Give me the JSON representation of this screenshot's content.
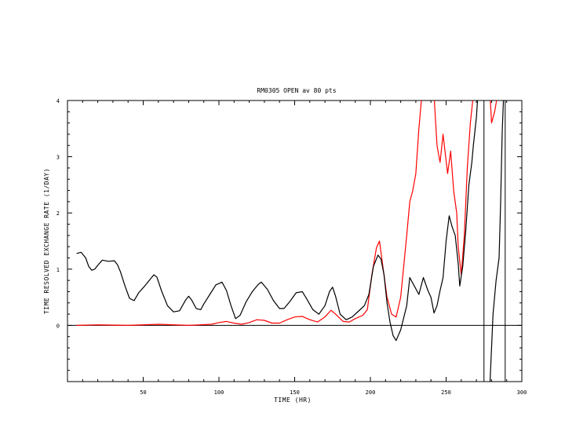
{
  "chart_data": {
    "type": "line",
    "title": "RM0305 OPEN av 80 pts",
    "xlabel": "TIME (HR)",
    "ylabel": "TIME RESOLVED EXCHANGE RATE (1/DAY)",
    "xlim": [
      0,
      300
    ],
    "ylim": [
      -1,
      4
    ],
    "x_ticks": [
      50,
      100,
      150,
      200,
      250,
      300
    ],
    "y_ticks": [
      0,
      1,
      2,
      3,
      4
    ],
    "zero_line": true,
    "vertical_lines_x": [
      275,
      289
    ],
    "series": [
      {
        "color": "#000000",
        "points": [
          [
            6,
            1.28
          ],
          [
            9,
            1.3
          ],
          [
            12,
            1.2
          ],
          [
            14,
            1.05
          ],
          [
            16,
            0.98
          ],
          [
            18,
            1.0
          ],
          [
            21,
            1.1
          ],
          [
            23,
            1.16
          ],
          [
            27,
            1.14
          ],
          [
            31,
            1.15
          ],
          [
            33,
            1.08
          ],
          [
            35,
            0.95
          ],
          [
            38,
            0.7
          ],
          [
            41,
            0.48
          ],
          [
            44,
            0.44
          ],
          [
            47,
            0.58
          ],
          [
            51,
            0.7
          ],
          [
            54,
            0.8
          ],
          [
            57,
            0.9
          ],
          [
            59,
            0.86
          ],
          [
            62,
            0.62
          ],
          [
            66,
            0.35
          ],
          [
            70,
            0.24
          ],
          [
            74,
            0.26
          ],
          [
            78,
            0.45
          ],
          [
            80,
            0.52
          ],
          [
            82,
            0.45
          ],
          [
            85,
            0.3
          ],
          [
            88,
            0.28
          ],
          [
            90,
            0.38
          ],
          [
            94,
            0.55
          ],
          [
            98,
            0.72
          ],
          [
            102,
            0.77
          ],
          [
            105,
            0.62
          ],
          [
            108,
            0.35
          ],
          [
            111,
            0.12
          ],
          [
            114,
            0.18
          ],
          [
            118,
            0.42
          ],
          [
            122,
            0.6
          ],
          [
            126,
            0.73
          ],
          [
            128,
            0.77
          ],
          [
            132,
            0.64
          ],
          [
            136,
            0.44
          ],
          [
            140,
            0.3
          ],
          [
            143,
            0.3
          ],
          [
            147,
            0.43
          ],
          [
            151,
            0.58
          ],
          [
            155,
            0.6
          ],
          [
            158,
            0.47
          ],
          [
            162,
            0.28
          ],
          [
            166,
            0.2
          ],
          [
            170,
            0.35
          ],
          [
            173,
            0.6
          ],
          [
            175,
            0.68
          ],
          [
            177,
            0.52
          ],
          [
            180,
            0.2
          ],
          [
            184,
            0.1
          ],
          [
            188,
            0.15
          ],
          [
            192,
            0.25
          ],
          [
            196,
            0.35
          ],
          [
            199,
            0.55
          ],
          [
            202,
            1.05
          ],
          [
            205,
            1.25
          ],
          [
            207,
            1.18
          ],
          [
            209,
            0.9
          ],
          [
            211,
            0.4
          ],
          [
            213,
            0.05
          ],
          [
            215,
            -0.18
          ],
          [
            217,
            -0.27
          ],
          [
            220,
            -0.08
          ],
          [
            224,
            0.35
          ],
          [
            226,
            0.85
          ],
          [
            229,
            0.7
          ],
          [
            232,
            0.55
          ],
          [
            235,
            0.85
          ],
          [
            238,
            0.62
          ],
          [
            240,
            0.5
          ],
          [
            242,
            0.22
          ],
          [
            244,
            0.35
          ],
          [
            246,
            0.62
          ],
          [
            248,
            0.85
          ],
          [
            250,
            1.5
          ],
          [
            252,
            1.95
          ],
          [
            254,
            1.75
          ],
          [
            256,
            1.6
          ],
          [
            258,
            1.1
          ],
          [
            259,
            0.7
          ],
          [
            261,
            1.05
          ],
          [
            263,
            1.7
          ],
          [
            265,
            2.5
          ],
          [
            267,
            2.9
          ],
          [
            268,
            3.2
          ],
          [
            270,
            3.7
          ],
          [
            271,
            4.1
          ]
        ]
      },
      {
        "color": "#ff0000",
        "points": [
          [
            6,
            0.0
          ],
          [
            20,
            0.01
          ],
          [
            40,
            0.0
          ],
          [
            60,
            0.02
          ],
          [
            80,
            0.0
          ],
          [
            95,
            0.02
          ],
          [
            100,
            0.05
          ],
          [
            105,
            0.07
          ],
          [
            110,
            0.04
          ],
          [
            115,
            0.02
          ],
          [
            120,
            0.05
          ],
          [
            125,
            0.1
          ],
          [
            130,
            0.09
          ],
          [
            135,
            0.04
          ],
          [
            140,
            0.04
          ],
          [
            145,
            0.1
          ],
          [
            150,
            0.15
          ],
          [
            155,
            0.16
          ],
          [
            160,
            0.1
          ],
          [
            165,
            0.06
          ],
          [
            170,
            0.15
          ],
          [
            174,
            0.27
          ],
          [
            177,
            0.2
          ],
          [
            182,
            0.07
          ],
          [
            186,
            0.06
          ],
          [
            190,
            0.12
          ],
          [
            195,
            0.18
          ],
          [
            198,
            0.28
          ],
          [
            201,
            0.9
          ],
          [
            204,
            1.38
          ],
          [
            206,
            1.5
          ],
          [
            208,
            1.1
          ],
          [
            211,
            0.5
          ],
          [
            214,
            0.2
          ],
          [
            217,
            0.15
          ],
          [
            220,
            0.5
          ],
          [
            224,
            1.6
          ],
          [
            226,
            2.2
          ],
          [
            228,
            2.4
          ],
          [
            230,
            2.7
          ],
          [
            232,
            3.5
          ],
          [
            234,
            4.1
          ]
        ]
      },
      {
        "color": "#ff0000",
        "points": [
          [
            242,
            4.1
          ],
          [
            244,
            3.2
          ],
          [
            246,
            2.9
          ],
          [
            248,
            3.4
          ],
          [
            251,
            2.7
          ],
          [
            253,
            3.1
          ],
          [
            255,
            2.4
          ],
          [
            257,
            2.0
          ],
          [
            258,
            1.4
          ],
          [
            260,
            0.9
          ],
          [
            262,
            1.6
          ],
          [
            264,
            2.8
          ],
          [
            266,
            3.6
          ],
          [
            268,
            4.1
          ]
        ]
      },
      {
        "color": "#ff0000",
        "points": [
          [
            279,
            4.1
          ],
          [
            280,
            3.6
          ],
          [
            282,
            3.8
          ],
          [
            284,
            4.1
          ]
        ]
      },
      {
        "color": "#000000",
        "points": [
          [
            279,
            -1.0
          ],
          [
            280,
            -0.4
          ],
          [
            281,
            0.2
          ],
          [
            283,
            0.8
          ],
          [
            285,
            1.2
          ],
          [
            286,
            2.2
          ],
          [
            287,
            3.4
          ],
          [
            288,
            4.1
          ]
        ]
      }
    ]
  }
}
